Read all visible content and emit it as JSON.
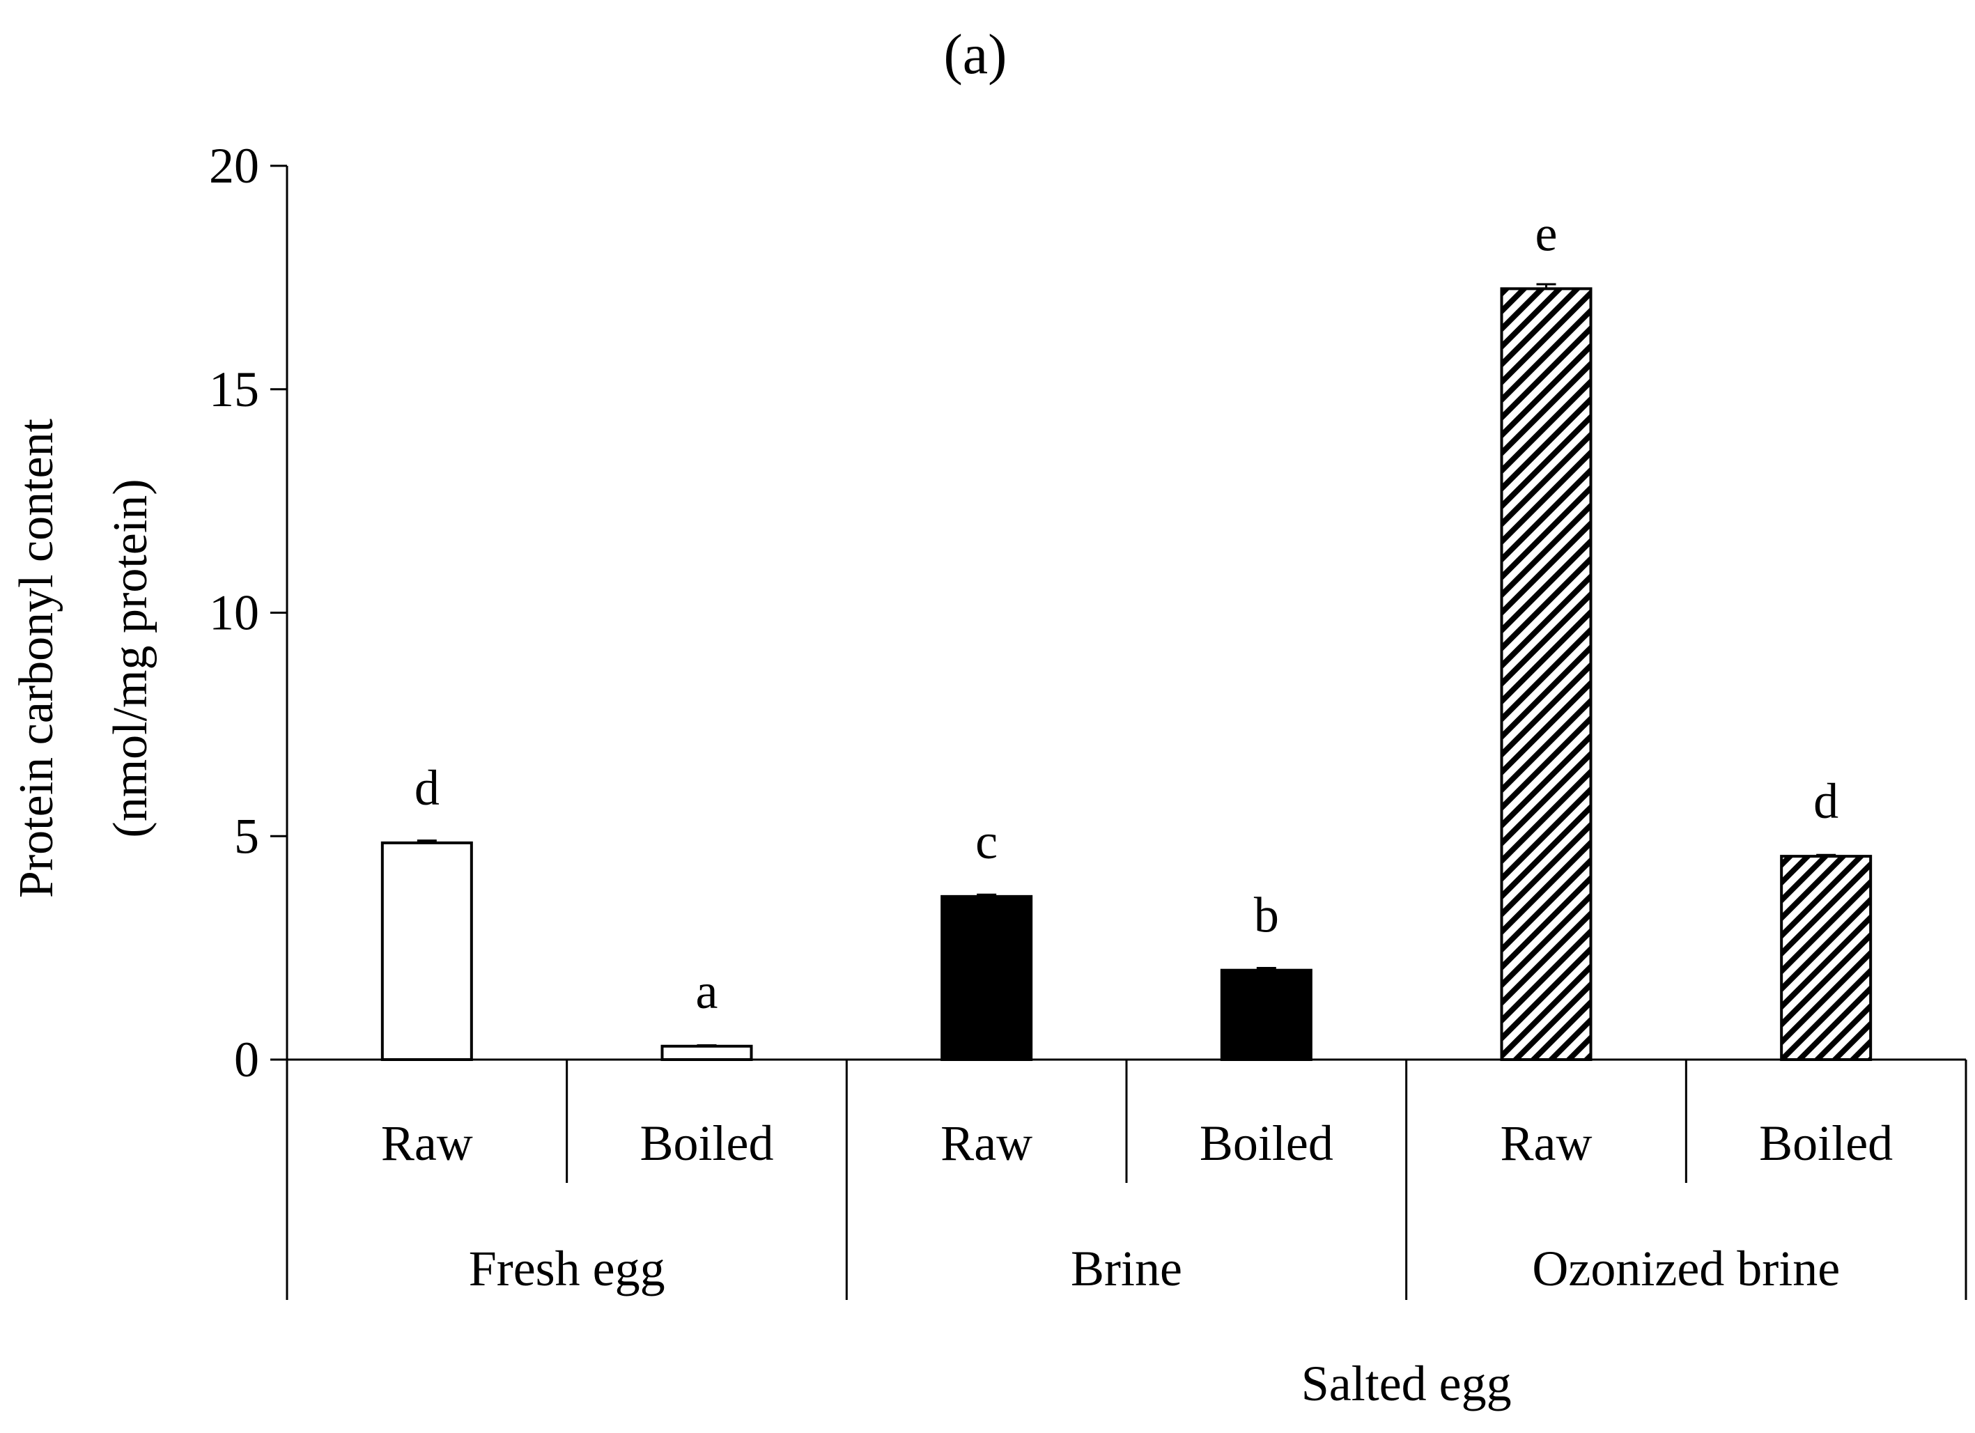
{
  "chart_data": {
    "type": "bar",
    "title": "(a)",
    "ylabel_line1": "Protein carbonyl content",
    "ylabel_line2": "(nmol/mg protein)",
    "ylim": [
      0,
      20
    ],
    "yticks": [
      0,
      5,
      10,
      15,
      20
    ],
    "groups": [
      {
        "label": "Fresh egg",
        "fill": "white"
      },
      {
        "label": "Brine",
        "fill": "black"
      },
      {
        "label": "Ozonized brine",
        "fill": "hatch"
      }
    ],
    "bars": [
      {
        "category": "Raw",
        "group": "Fresh egg",
        "value": 4.85,
        "error": 0.05,
        "significance": "d"
      },
      {
        "category": "Boiled",
        "group": "Fresh egg",
        "value": 0.3,
        "error": 0.02,
        "significance": "a"
      },
      {
        "category": "Raw",
        "group": "Brine",
        "value": 3.65,
        "error": 0.04,
        "significance": "c"
      },
      {
        "category": "Boiled",
        "group": "Brine",
        "value": 2.0,
        "error": 0.05,
        "significance": "b"
      },
      {
        "category": "Raw",
        "group": "Ozonized brine",
        "value": 17.25,
        "error": 0.1,
        "significance": "e"
      },
      {
        "category": "Boiled",
        "group": "Ozonized brine",
        "value": 4.55,
        "error": 0.03,
        "significance": "d"
      }
    ],
    "super_group_label": "Salted egg"
  },
  "colors": {
    "axis": "#000000",
    "white_fill": "#ffffff",
    "black_fill": "#000000"
  }
}
